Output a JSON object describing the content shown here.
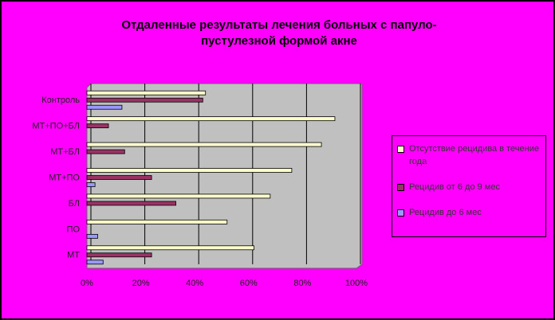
{
  "chart_data": {
    "type": "bar",
    "orientation": "horizontal",
    "title": [
      "Отдаленные результаты лечения больных с папуло-",
      "пустулезной формой акне"
    ],
    "categories": [
      "МТ",
      "ПО",
      "БЛ",
      "МТ+ПО",
      "МТ+БЛ",
      "МТ+ПО+БЛ",
      "Контроль"
    ],
    "series": [
      {
        "name": "Отсутствие рецидива в течение года",
        "color": "#ffffcc",
        "values": [
          62,
          52,
          68,
          76,
          87,
          92,
          44
        ]
      },
      {
        "name": "Рецидив от 6 до 9 мес",
        "color": "#993366",
        "values": [
          24,
          0,
          33,
          24,
          14,
          8,
          43
        ]
      },
      {
        "name": "Рецидив до 6 мес",
        "color": "#9999ff",
        "values": [
          6,
          4,
          0,
          3,
          0,
          0,
          13
        ]
      }
    ],
    "xlim": [
      0,
      100
    ],
    "xticks": [
      {
        "value": 0,
        "label": "0%"
      },
      {
        "value": 20,
        "label": "20%"
      },
      {
        "value": 40,
        "label": "40%"
      },
      {
        "value": 60,
        "label": "60%"
      },
      {
        "value": 80,
        "label": "80%"
      },
      {
        "value": 100,
        "label": "100%"
      }
    ],
    "grid": true,
    "legend": "right"
  }
}
